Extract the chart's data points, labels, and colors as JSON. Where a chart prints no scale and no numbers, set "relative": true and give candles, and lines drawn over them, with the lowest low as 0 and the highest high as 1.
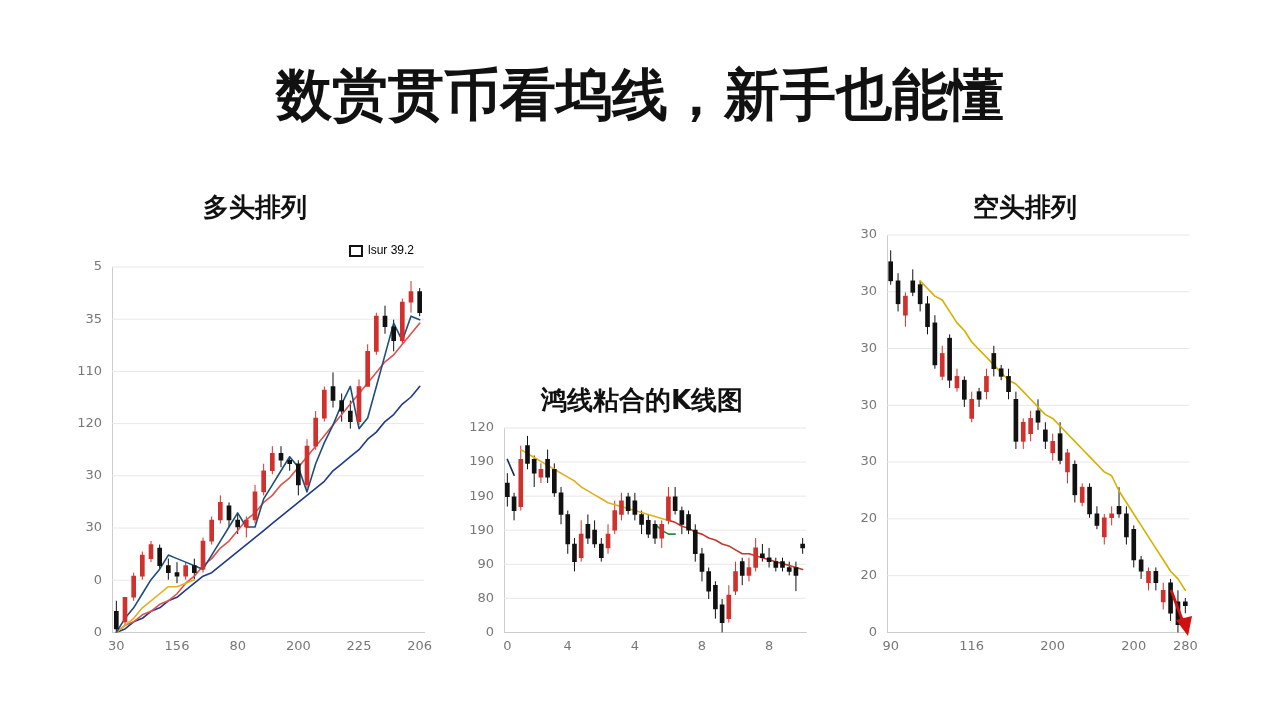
{
  "chart_data": [
    {
      "type": "other",
      "title": "数赏贯币看坞线，新手也能懂"
    },
    {
      "type": "candlestick",
      "title": "多头排列",
      "relative": true,
      "grid": "y",
      "legend": "top right",
      "marker": "none",
      "line_style": "solid",
      "annotations": [
        "5",
        "35",
        "110",
        "120",
        "30",
        "30",
        "0",
        "0"
      ],
      "categories": [
        "30",
        null,
        null,
        null,
        null,
        null,
        null,
        "156",
        null,
        null,
        null,
        null,
        null,
        null,
        "80",
        null,
        null,
        null,
        null,
        null,
        null,
        "200",
        null,
        null,
        null,
        null,
        null,
        null,
        "225",
        null,
        null,
        null,
        null,
        null,
        null,
        "206"
      ],
      "series": [
        {
          "type": "candlestick",
          "name": "lsur 39.2",
          "color": "#111111",
          "ohlc": [
            [
              0.06,
              0.09,
              0,
              0.01
            ],
            [
              0.03,
              0.1,
              0.02,
              0.1
            ],
            [
              0.1,
              0.17,
              0.09,
              0.16
            ],
            [
              0.16,
              0.23,
              0.15,
              0.22
            ],
            [
              0.21,
              0.26,
              0.2,
              0.25
            ],
            [
              0.24,
              0.25,
              0.18,
              0.19
            ],
            [
              0.19,
              0.21,
              0.15,
              0.17
            ],
            [
              0.17,
              0.2,
              0.14,
              0.16
            ],
            [
              0.16,
              0.2,
              0.15,
              0.19
            ],
            [
              0.19,
              0.21,
              0.15,
              0.17
            ],
            [
              0.18,
              0.27,
              0.17,
              0.26
            ],
            [
              0.26,
              0.33,
              0.25,
              0.32
            ],
            [
              0.32,
              0.39,
              0.31,
              0.37
            ],
            [
              0.36,
              0.37,
              0.3,
              0.32
            ],
            [
              0.32,
              0.34,
              0.28,
              0.3
            ],
            [
              0.3,
              0.33,
              0.27,
              0.32
            ],
            [
              0.32,
              0.42,
              0.31,
              0.4
            ],
            [
              0.4,
              0.48,
              0.39,
              0.46
            ],
            [
              0.46,
              0.53,
              0.45,
              0.51
            ],
            [
              0.51,
              0.53,
              0.47,
              0.49
            ],
            [
              0.49,
              0.5,
              0.46,
              0.48
            ],
            [
              0.48,
              0.49,
              0.39,
              0.42
            ],
            [
              0.42,
              0.55,
              0.41,
              0.53
            ],
            [
              0.53,
              0.63,
              0.52,
              0.61
            ],
            [
              0.61,
              0.7,
              0.6,
              0.69
            ],
            [
              0.7,
              0.74,
              0.64,
              0.66
            ],
            [
              0.66,
              0.68,
              0.6,
              0.63
            ],
            [
              0.63,
              0.66,
              0.58,
              0.6
            ],
            [
              0.6,
              0.72,
              0.59,
              0.7
            ],
            [
              0.7,
              0.82,
              0.7,
              0.8
            ],
            [
              0.8,
              0.91,
              0.79,
              0.9
            ],
            [
              0.9,
              0.93,
              0.85,
              0.87
            ],
            [
              0.87,
              0.89,
              0.8,
              0.83
            ],
            [
              0.83,
              0.95,
              0.82,
              0.94
            ],
            [
              0.94,
              1,
              0.91,
              0.97
            ],
            [
              0.97,
              0.98,
              0.9,
              0.91
            ]
          ],
          "colors": [
            "#111111",
            "#d0312d",
            "#d0312d",
            "#d0312d",
            "#d0312d",
            "#111111",
            "#111111",
            "#111111",
            "#d0312d",
            "#111111",
            "#d0312d",
            "#d0312d",
            "#d0312d",
            "#111111",
            "#111111",
            "#d0312d",
            "#d0312d",
            "#d0312d",
            "#d0312d",
            "#111111",
            "#111111",
            "#111111",
            "#d0312d",
            "#d0312d",
            "#d0312d",
            "#111111",
            "#111111",
            "#111111",
            "#d0312d",
            "#d0312d",
            "#d0312d",
            "#111111",
            "#111111",
            "#d0312d",
            "#d0312d",
            "#111111"
          ]
        },
        {
          "type": "line",
          "color": "#1f4e79",
          "values": [
            0,
            0.04,
            0.07,
            0.11,
            0.15,
            0.18,
            0.22,
            0.21,
            0.2,
            0.19,
            0.18,
            0.22,
            0.26,
            0.3,
            0.34,
            0.3,
            0.3,
            0.38,
            0.42,
            0.46,
            0.5,
            0.47,
            0.4,
            0.48,
            0.54,
            0.59,
            0.65,
            0.7,
            0.58,
            0.61,
            0.7,
            0.79,
            0.88,
            0.83,
            0.9,
            0.89
          ]
        },
        {
          "type": "line",
          "color": "#e0b020",
          "values": [
            0,
            0.02,
            0.04,
            0.07,
            0.09,
            0.11,
            0.13,
            0.13,
            0.14,
            0.15,
            null,
            null,
            null,
            null,
            null,
            null,
            null,
            null,
            null,
            null,
            null,
            null,
            null,
            null,
            null,
            null,
            null,
            null,
            null,
            null,
            null,
            null,
            null,
            null,
            null,
            null
          ]
        },
        {
          "type": "line",
          "color": "#d9534f",
          "values": [
            0,
            0.02,
            0.03,
            0.05,
            0.06,
            0.08,
            0.09,
            0.11,
            0.14,
            0.16,
            0.19,
            0.21,
            0.24,
            0.26,
            0.29,
            0.32,
            0.34,
            0.37,
            0.39,
            0.42,
            0.44,
            0.47,
            0.5,
            0.53,
            0.56,
            0.59,
            0.62,
            0.65,
            0.68,
            0.71,
            0.74,
            0.77,
            0.79,
            0.82,
            0.85,
            0.88
          ]
        },
        {
          "type": "line",
          "color": "#1f3a8a",
          "values": [
            0,
            0.01,
            0.03,
            0.04,
            0.06,
            0.07,
            0.09,
            0.1,
            0.12,
            0.14,
            0.16,
            0.17,
            0.19,
            0.21,
            0.23,
            0.25,
            0.27,
            0.29,
            0.31,
            0.33,
            0.35,
            0.37,
            0.39,
            0.41,
            0.43,
            0.46,
            0.48,
            0.5,
            0.52,
            0.55,
            0.57,
            0.6,
            0.62,
            0.65,
            0.67,
            0.7
          ]
        }
      ]
    },
    {
      "type": "candlestick",
      "title": "鸿线粘合的K线图",
      "relative": true,
      "grid": "y",
      "marker": "none",
      "line_style": "solid",
      "annotations": [
        "120",
        "190",
        "190",
        "190",
        "90",
        "80",
        "0"
      ],
      "categories": [
        "0",
        null,
        null,
        null,
        null,
        null,
        null,
        null,
        null,
        "4",
        null,
        null,
        null,
        null,
        null,
        null,
        null,
        null,
        null,
        "4",
        null,
        null,
        null,
        null,
        null,
        null,
        null,
        null,
        null,
        "8",
        null,
        null,
        null,
        null,
        null,
        null,
        null,
        null,
        null,
        "8",
        null,
        null,
        null,
        null,
        null
      ],
      "series": [
        {
          "type": "candlestick",
          "color": "#111111",
          "ohlc": [
            [
              0.76,
              0.81,
              0.64,
              0.69
            ],
            [
              0.69,
              0.71,
              0.57,
              0.62
            ],
            [
              0.64,
              0.95,
              0.62,
              0.88
            ],
            [
              0.95,
              1,
              0.83,
              0.86
            ],
            [
              0.88,
              0.9,
              0.74,
              0.81
            ],
            [
              0.79,
              0.86,
              0.76,
              0.83
            ],
            [
              0.88,
              0.93,
              0.76,
              0.79
            ],
            [
              0.83,
              0.86,
              0.69,
              0.71
            ],
            [
              0.71,
              0.74,
              0.55,
              0.6
            ],
            [
              0.6,
              0.62,
              0.4,
              0.45
            ],
            [
              0.45,
              0.48,
              0.31,
              0.36
            ],
            [
              0.38,
              0.57,
              0.36,
              0.5
            ],
            [
              0.55,
              0.6,
              0.45,
              0.48
            ],
            [
              0.52,
              0.57,
              0.43,
              0.45
            ],
            [
              0.45,
              0.48,
              0.36,
              0.38
            ],
            [
              0.43,
              0.55,
              0.4,
              0.5
            ],
            [
              0.52,
              0.67,
              0.5,
              0.62
            ],
            [
              0.6,
              0.71,
              0.57,
              0.67
            ],
            [
              0.69,
              0.71,
              0.6,
              0.62
            ],
            [
              0.67,
              0.71,
              0.57,
              0.6
            ],
            [
              0.6,
              0.62,
              0.5,
              0.55
            ],
            [
              0.57,
              0.6,
              0.48,
              0.5
            ],
            [
              0.55,
              0.57,
              0.45,
              0.48
            ],
            [
              0.48,
              0.57,
              0.43,
              0.55
            ],
            [
              0.57,
              0.74,
              0.55,
              0.69
            ],
            [
              0.69,
              0.74,
              0.6,
              0.62
            ],
            [
              0.62,
              0.64,
              0.5,
              0.55
            ],
            [
              0.6,
              0.62,
              0.5,
              0.52
            ],
            [
              0.52,
              0.55,
              0.36,
              0.4
            ],
            [
              0.4,
              0.43,
              0.26,
              0.31
            ],
            [
              0.31,
              0.33,
              0.17,
              0.21
            ],
            [
              0.24,
              0.26,
              0.07,
              0.12
            ],
            [
              0.14,
              0.17,
              0,
              0.05
            ],
            [
              0.07,
              0.24,
              0.05,
              0.19
            ],
            [
              0.21,
              0.36,
              0.19,
              0.31
            ],
            [
              0.36,
              0.38,
              0.24,
              0.29
            ],
            [
              0.29,
              0.38,
              0.26,
              0.33
            ],
            [
              0.33,
              0.48,
              0.31,
              0.43
            ],
            [
              0.4,
              0.45,
              0.36,
              0.38
            ],
            [
              0.38,
              0.43,
              0.33,
              0.36
            ],
            [
              0.36,
              0.38,
              0.31,
              0.33
            ],
            [
              0.36,
              0.38,
              0.31,
              0.33
            ],
            [
              0.33,
              0.36,
              0.29,
              0.31
            ],
            [
              0.33,
              0.36,
              0.21,
              0.29
            ],
            [
              0.45,
              0.48,
              0.4,
              0.43
            ]
          ],
          "colors": [
            "#111111",
            "#111111",
            "#d0312d",
            "#111111",
            "#111111",
            "#d0312d",
            "#111111",
            "#111111",
            "#111111",
            "#111111",
            "#111111",
            "#d0312d",
            "#111111",
            "#111111",
            "#111111",
            "#d0312d",
            "#d0312d",
            "#d0312d",
            "#111111",
            "#111111",
            "#111111",
            "#111111",
            "#111111",
            "#d0312d",
            "#d0312d",
            "#111111",
            "#111111",
            "#111111",
            "#111111",
            "#111111",
            "#111111",
            "#111111",
            "#111111",
            "#d0312d",
            "#d0312d",
            "#111111",
            "#d0312d",
            "#d0312d",
            "#111111",
            "#111111",
            "#111111",
            "#111111",
            "#111111",
            "#111111",
            "#111111"
          ]
        },
        {
          "type": "line",
          "color": "#1a2a4a",
          "values": [
            0.88,
            0.8,
            null,
            null,
            null,
            null,
            null,
            null,
            null,
            null,
            null,
            null,
            null,
            null,
            null,
            null,
            null,
            null,
            null,
            null,
            null,
            null,
            null,
            null,
            null,
            null,
            null,
            null,
            null,
            null,
            null,
            null,
            null,
            null,
            null,
            null,
            null,
            null,
            null,
            null,
            null,
            null,
            null,
            null,
            null
          ]
        },
        {
          "type": "line",
          "color": "#e0b020",
          "values": [
            null,
            null,
            0.93,
            0.91,
            0.89,
            0.87,
            0.85,
            0.83,
            0.81,
            0.79,
            0.77,
            0.74,
            0.72,
            0.7,
            0.68,
            0.66,
            0.65,
            0.64,
            0.63,
            0.62,
            0.61,
            0.6,
            0.59,
            0.58,
            0.57,
            null,
            null,
            null,
            null,
            null,
            null,
            null,
            null,
            null,
            null,
            null,
            null,
            null,
            null,
            null,
            null,
            null,
            null,
            null,
            null
          ]
        },
        {
          "type": "line",
          "color": "#2e8b3a",
          "values": [
            null,
            null,
            null,
            null,
            null,
            null,
            null,
            null,
            null,
            null,
            null,
            null,
            null,
            null,
            null,
            null,
            null,
            null,
            null,
            null,
            null,
            null,
            0.55,
            0.52,
            0.5,
            0.5,
            null,
            null,
            null,
            null,
            null,
            null,
            null,
            null,
            null,
            null,
            null,
            null,
            null,
            null,
            null,
            null,
            null,
            null,
            null
          ]
        },
        {
          "type": "line",
          "color": "#c0392b",
          "values": [
            null,
            null,
            null,
            null,
            null,
            null,
            null,
            null,
            null,
            null,
            null,
            null,
            null,
            null,
            null,
            null,
            null,
            null,
            null,
            null,
            null,
            null,
            null,
            null,
            0.57,
            0.56,
            0.54,
            0.53,
            0.51,
            0.5,
            0.48,
            0.47,
            0.45,
            0.44,
            0.42,
            0.4,
            0.4,
            0.39,
            0.38,
            0.37,
            0.36,
            0.35,
            0.34,
            0.33,
            0.32
          ]
        }
      ]
    },
    {
      "type": "candlestick",
      "title": "空头排列",
      "relative": true,
      "grid": "y",
      "marker": "none",
      "line_style": "solid",
      "annotations": [
        "30",
        "30",
        "30",
        "30",
        "30",
        "20",
        "20",
        "0"
      ],
      "categories": [
        "90",
        null,
        null,
        null,
        null,
        null,
        null,
        null,
        null,
        null,
        null,
        "116",
        null,
        null,
        null,
        null,
        null,
        null,
        null,
        null,
        null,
        null,
        "200",
        null,
        null,
        null,
        null,
        null,
        null,
        null,
        null,
        null,
        null,
        "200",
        null,
        null,
        null,
        null,
        null,
        null,
        "280"
      ],
      "series": [
        {
          "type": "candlestick",
          "color": "#111111",
          "ohlc": [
            [
              0.97,
              1,
              0.91,
              0.92
            ],
            [
              0.92,
              0.94,
              0.84,
              0.86
            ],
            [
              0.83,
              0.89,
              0.8,
              0.88
            ],
            [
              0.92,
              0.95,
              0.88,
              0.89
            ],
            [
              0.91,
              0.92,
              0.84,
              0.86
            ],
            [
              0.86,
              0.88,
              0.78,
              0.8
            ],
            [
              0.81,
              0.83,
              0.69,
              0.7
            ],
            [
              0.67,
              0.75,
              0.66,
              0.73
            ],
            [
              0.77,
              0.78,
              0.64,
              0.66
            ],
            [
              0.64,
              0.69,
              0.63,
              0.67
            ],
            [
              0.66,
              0.67,
              0.59,
              0.61
            ],
            [
              0.56,
              0.63,
              0.55,
              0.61
            ],
            [
              0.63,
              0.64,
              0.59,
              0.61
            ],
            [
              0.63,
              0.69,
              0.61,
              0.67
            ],
            [
              0.73,
              0.75,
              0.67,
              0.69
            ],
            [
              0.69,
              0.7,
              0.66,
              0.67
            ],
            [
              0.67,
              0.69,
              0.61,
              0.63
            ],
            [
              0.61,
              0.63,
              0.48,
              0.5
            ],
            [
              0.5,
              0.56,
              0.48,
              0.55
            ],
            [
              0.52,
              0.58,
              0.5,
              0.56
            ],
            [
              0.58,
              0.61,
              0.53,
              0.55
            ],
            [
              0.53,
              0.55,
              0.48,
              0.5
            ],
            [
              0.47,
              0.52,
              0.45,
              0.5
            ],
            [
              0.52,
              0.55,
              0.44,
              0.45
            ],
            [
              0.42,
              0.48,
              0.39,
              0.47
            ],
            [
              0.44,
              0.45,
              0.34,
              0.36
            ],
            [
              0.34,
              0.39,
              0.33,
              0.38
            ],
            [
              0.38,
              0.39,
              0.3,
              0.31
            ],
            [
              0.31,
              0.33,
              0.27,
              0.28
            ],
            [
              0.25,
              0.31,
              0.23,
              0.3
            ],
            [
              0.3,
              0.33,
              0.28,
              0.31
            ],
            [
              0.33,
              0.38,
              0.3,
              0.31
            ],
            [
              0.31,
              0.33,
              0.23,
              0.25
            ],
            [
              0.27,
              0.28,
              0.17,
              0.19
            ],
            [
              0.19,
              0.2,
              0.14,
              0.16
            ],
            [
              0.13,
              0.17,
              0.11,
              0.16
            ],
            [
              0.16,
              0.17,
              0.11,
              0.13
            ],
            [
              0.08,
              0.13,
              0.06,
              0.11
            ],
            [
              0.13,
              0.14,
              0.03,
              0.05
            ],
            [
              0.08,
              0.11,
              0,
              0.02
            ],
            [
              0.08,
              0.09,
              0.05,
              0.07
            ]
          ],
          "colors": [
            "#111111",
            "#111111",
            "#d0312d",
            "#111111",
            "#111111",
            "#111111",
            "#111111",
            "#d0312d",
            "#111111",
            "#d0312d",
            "#111111",
            "#d0312d",
            "#111111",
            "#d0312d",
            "#111111",
            "#111111",
            "#111111",
            "#111111",
            "#d0312d",
            "#d0312d",
            "#111111",
            "#111111",
            "#d0312d",
            "#111111",
            "#d0312d",
            "#111111",
            "#d0312d",
            "#111111",
            "#111111",
            "#d0312d",
            "#d0312d",
            "#111111",
            "#111111",
            "#111111",
            "#111111",
            "#d0312d",
            "#111111",
            "#d0312d",
            "#111111",
            "#111111",
            "#111111"
          ]
        },
        {
          "type": "line",
          "color": "#d4b000",
          "values": [
            null,
            null,
            null,
            null,
            0.92,
            0.9,
            0.88,
            0.87,
            0.84,
            0.81,
            0.79,
            0.76,
            0.74,
            0.72,
            0.7,
            0.68,
            0.66,
            0.65,
            0.63,
            0.61,
            0.59,
            0.57,
            0.56,
            0.54,
            0.52,
            0.5,
            0.48,
            0.46,
            0.44,
            0.42,
            0.41,
            0.37,
            0.34,
            0.31,
            0.28,
            0.25,
            0.22,
            0.19,
            0.16,
            0.14,
            0.11
          ]
        }
      ]
    }
  ]
}
